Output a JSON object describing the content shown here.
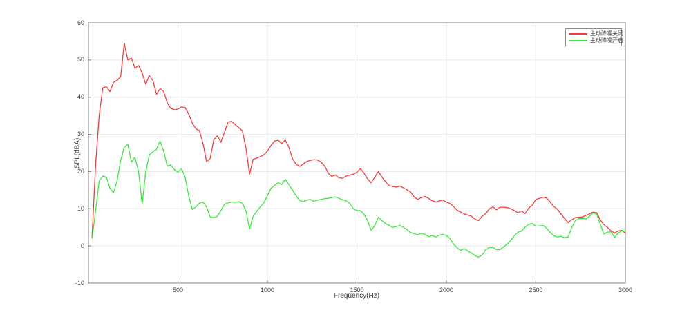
{
  "chart_data": {
    "type": "line",
    "title": "",
    "xlabel": "Frequency(Hz)",
    "ylabel": "SPL(dBA)",
    "xlim": [
      0,
      3000
    ],
    "ylim": [
      -10,
      60
    ],
    "xticks": [
      500,
      1000,
      1500,
      2000,
      2500,
      3000
    ],
    "yticks": [
      -10,
      0,
      10,
      20,
      30,
      40,
      50,
      60
    ],
    "grid": true,
    "legend_position": "top-right",
    "x_start": 20,
    "x_step": 20,
    "colors": {
      "grid": "#e8e8e8",
      "axis": "#7f7f7f",
      "text": "#404040"
    },
    "series": [
      {
        "name": "主动降噪关闭",
        "color": "#f53b3b",
        "values": [
          2.5,
          22,
          35,
          42.5,
          42.8,
          41.5,
          44,
          44.5,
          45.5,
          54.5,
          50,
          50.5,
          47.8,
          48.5,
          46.5,
          43.5,
          45.8,
          44.5,
          40.8,
          42.3,
          41.5,
          38.5,
          37,
          36.6,
          36.8,
          37.4,
          37.2,
          35.5,
          33,
          31.5,
          31,
          27.5,
          22.7,
          23.5,
          28.5,
          29.6,
          27.9,
          30.5,
          33.3,
          33.5,
          32.6,
          31.8,
          31,
          26.4,
          19.3,
          23.3,
          23.6,
          24,
          24.5,
          25.5,
          27,
          28.2,
          28.4,
          27.5,
          28.5,
          26.5,
          23.5,
          22,
          21.4,
          22,
          22.7,
          23,
          23.2,
          23.1,
          22.5,
          21.5,
          19.5,
          18.7,
          19.1,
          18.3,
          18.2,
          18.8,
          19,
          19.3,
          19.8,
          20.8,
          19.5,
          18,
          17,
          18.5,
          20,
          18.5,
          17.3,
          16.2,
          16,
          15.8,
          16.1,
          15.6,
          15.1,
          14.5,
          13.2,
          12.5,
          13,
          13.3,
          12.8,
          12.2,
          11.8,
          12.1,
          12.3,
          11.8,
          11.4,
          10.6,
          9.6,
          9.1,
          8.6,
          8.3,
          8,
          7.2,
          6.8,
          8,
          8.7,
          10,
          10.5,
          9.7,
          10.4,
          10.4,
          10.3,
          10,
          9.5,
          8.9,
          9.4,
          8.7,
          10.2,
          10.9,
          12.5,
          12.8,
          13.1,
          12.9,
          11.8,
          10.6,
          9.9,
          8.6,
          7.4,
          6.3,
          7,
          7.6,
          7.7,
          7.8,
          8.2,
          8.6,
          9.1,
          8.9,
          7,
          5.7,
          5,
          4,
          3.5,
          4,
          4.2,
          3.4
        ]
      },
      {
        "name": "主动降噪开启",
        "color": "#3ae83a",
        "values": [
          2,
          9.5,
          17.5,
          18.8,
          18.5,
          15.5,
          14.3,
          17.5,
          23,
          26.5,
          27.3,
          22.5,
          23.8,
          20,
          11.2,
          20,
          24.5,
          25.3,
          26,
          28.2,
          25.5,
          21.5,
          21.8,
          20.5,
          19.8,
          20.8,
          18.5,
          13.5,
          9.8,
          10.5,
          11.5,
          11.8,
          10.5,
          7.8,
          7.6,
          8,
          9.5,
          11.2,
          11.6,
          11.8,
          11.7,
          11.9,
          11.5,
          9.5,
          4.5,
          8,
          9.3,
          10.5,
          11.6,
          13.5,
          15.5,
          16.3,
          17,
          16.5,
          17.9,
          16.5,
          15,
          13.5,
          12.2,
          11.9,
          12.3,
          12.5,
          12,
          12.3,
          12.5,
          12.7,
          12.8,
          13,
          13.2,
          12.8,
          12.4,
          12.1,
          11.5,
          10,
          9.5,
          9.5,
          8.5,
          6.8,
          4.2,
          5.5,
          7.7,
          6.8,
          6,
          5.5,
          5,
          5.2,
          5.5,
          5,
          4.4,
          3.6,
          3.3,
          3,
          3.4,
          3.1,
          2.5,
          2.8,
          2.4,
          2.9,
          3.1,
          2.8,
          2,
          0.5,
          -0.5,
          -1.2,
          -0.7,
          -1.4,
          -1.9,
          -2.6,
          -3,
          -2.4,
          -1,
          -0.4,
          -0.3,
          -1,
          -1,
          -0.2,
          0.5,
          1.5,
          2.8,
          3.7,
          4,
          5.1,
          5.8,
          6,
          5.3,
          5.4,
          5.5,
          4.8,
          3.6,
          2.8,
          2.4,
          2.6,
          2.2,
          2.4,
          4.9,
          6.8,
          7.3,
          7.4,
          7.3,
          8,
          8.9,
          8.5,
          5.8,
          3.2,
          3.7,
          3.8,
          2.3,
          3.5,
          4,
          4
        ]
      }
    ]
  }
}
